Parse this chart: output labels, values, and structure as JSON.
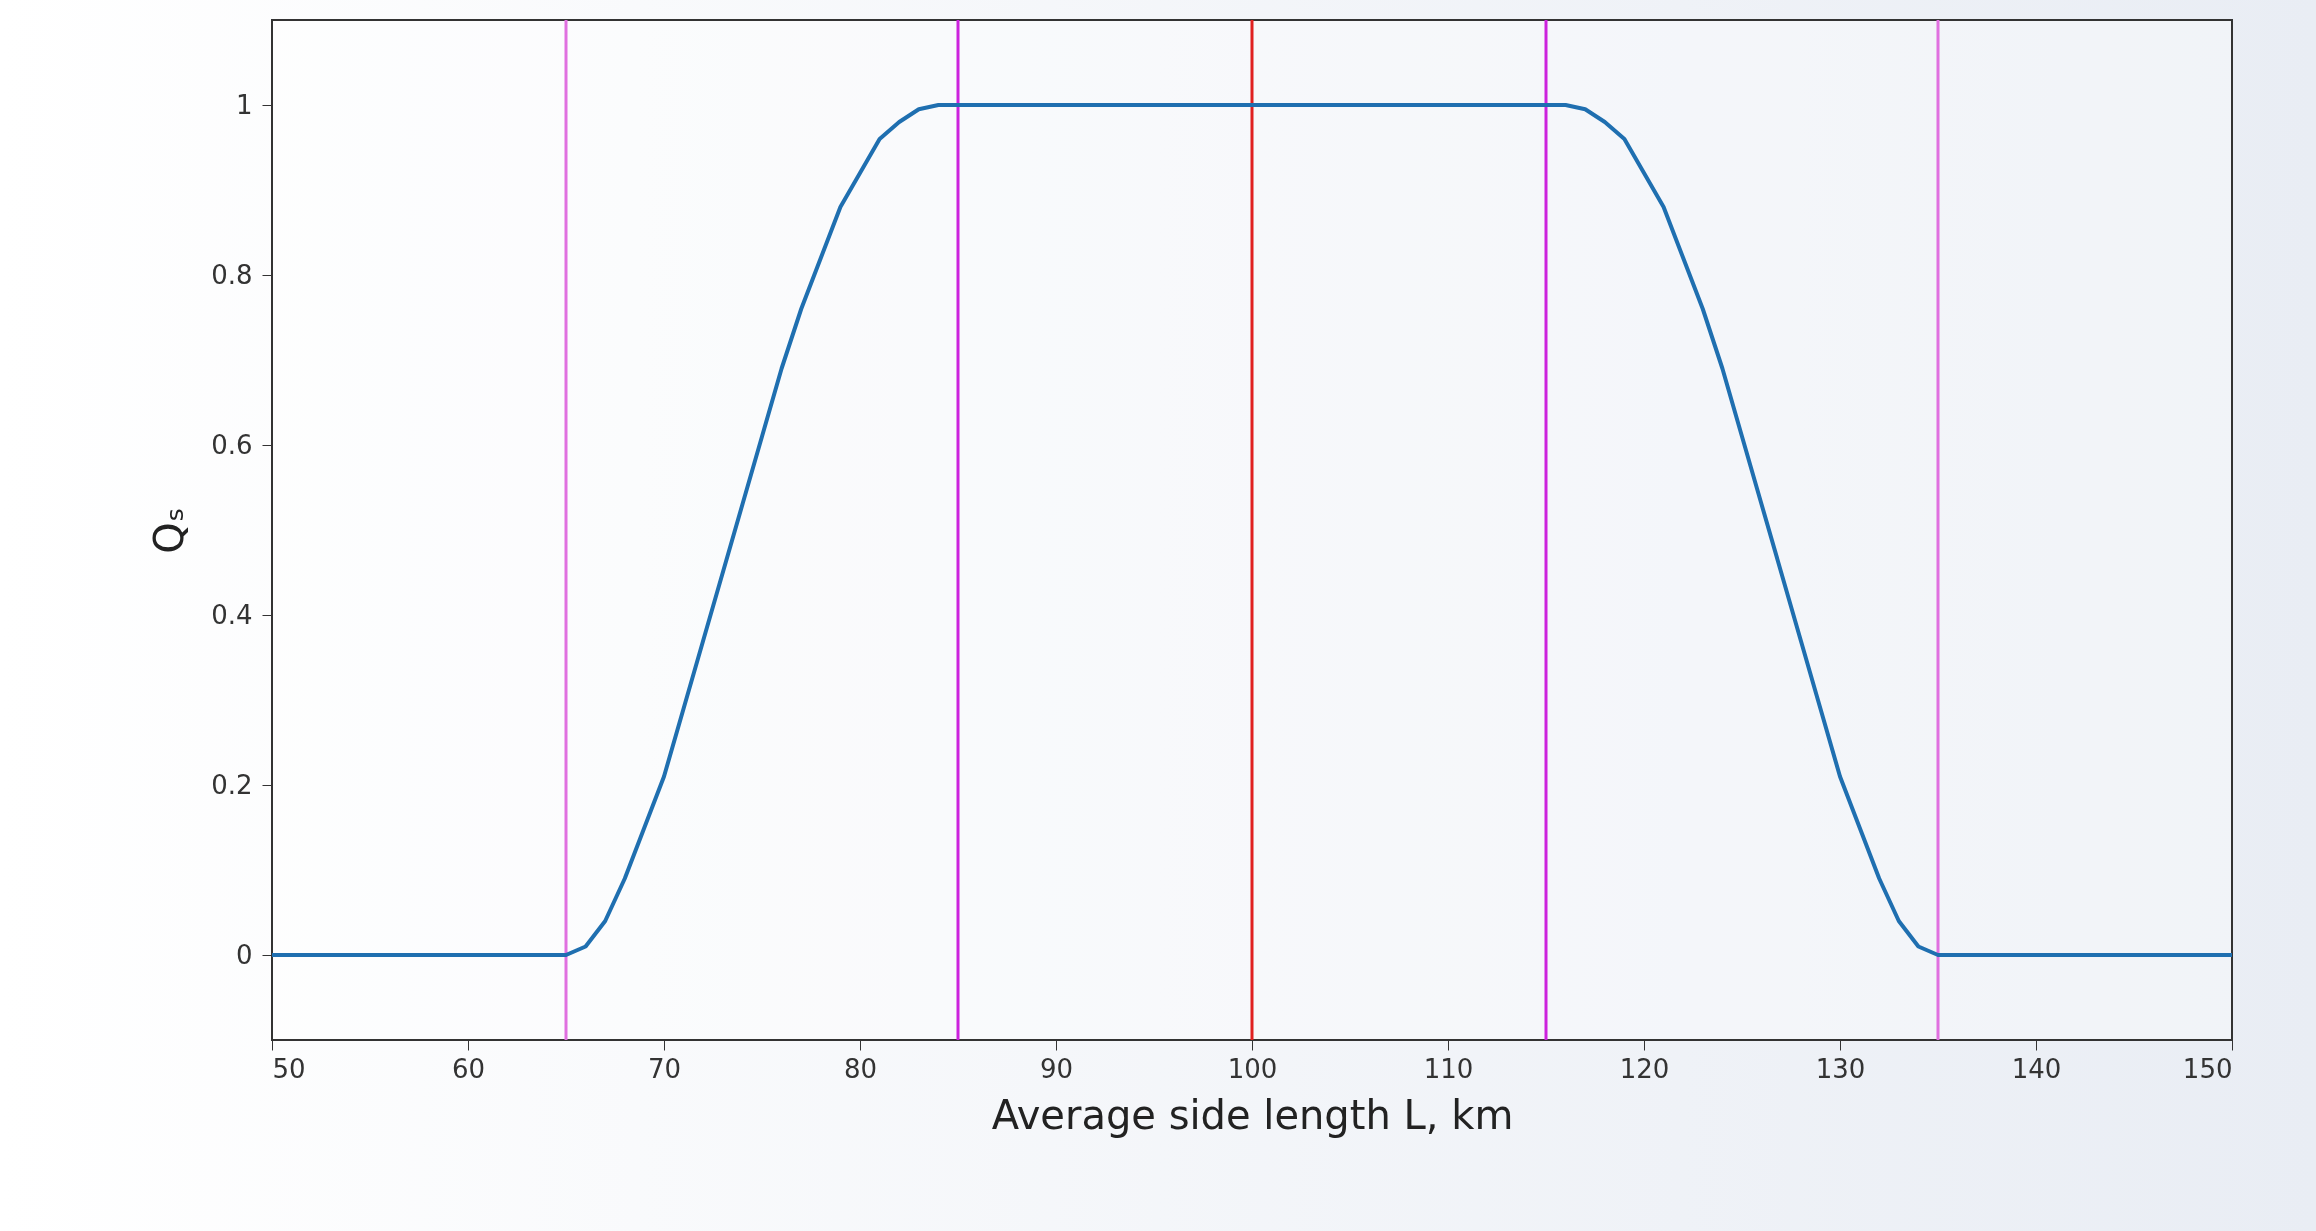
{
  "chart_data": {
    "type": "line",
    "xlabel": "Average side length L, km",
    "ylabel": "Qₛ",
    "xlim": [
      50,
      150
    ],
    "ylim": [
      -0.1,
      1.1
    ],
    "xticks": [
      50,
      60,
      70,
      80,
      90,
      100,
      110,
      120,
      130,
      140,
      150
    ],
    "yticks": [
      0,
      0.2,
      0.4,
      0.6,
      0.8,
      1
    ],
    "grid": false,
    "marker": "none",
    "line_style": "solid",
    "series": [
      {
        "color": "#1f6fb0",
        "x": [
          50,
          55,
          60,
          65,
          66,
          67,
          68,
          69,
          70,
          71,
          72,
          73,
          74,
          75,
          76,
          77,
          78,
          79,
          80,
          81,
          82,
          83,
          84,
          85,
          90,
          95,
          100,
          105,
          110,
          115,
          116,
          117,
          118,
          119,
          120,
          121,
          122,
          123,
          124,
          125,
          126,
          127,
          128,
          129,
          130,
          131,
          132,
          133,
          134,
          135,
          140,
          145,
          150
        ],
        "values": [
          0,
          0,
          0,
          0,
          0.01,
          0.04,
          0.09,
          0.15,
          0.21,
          0.29,
          0.37,
          0.45,
          0.53,
          0.61,
          0.69,
          0.76,
          0.82,
          0.88,
          0.92,
          0.96,
          0.98,
          0.995,
          1,
          1,
          1,
          1,
          1,
          1,
          1,
          1,
          1,
          0.995,
          0.98,
          0.96,
          0.92,
          0.88,
          0.82,
          0.76,
          0.69,
          0.61,
          0.53,
          0.45,
          0.37,
          0.29,
          0.21,
          0.15,
          0.09,
          0.04,
          0.01,
          0,
          0,
          0,
          0
        ]
      }
    ],
    "ref_lines": [
      {
        "axis": "x",
        "value": 65,
        "color": "#e070e0"
      },
      {
        "axis": "x",
        "value": 85,
        "color": "#cc22dd"
      },
      {
        "axis": "x",
        "value": 100,
        "color": "#e02020"
      },
      {
        "axis": "x",
        "value": 115,
        "color": "#cc22dd"
      },
      {
        "axis": "x",
        "value": 135,
        "color": "#e070e0"
      }
    ]
  }
}
